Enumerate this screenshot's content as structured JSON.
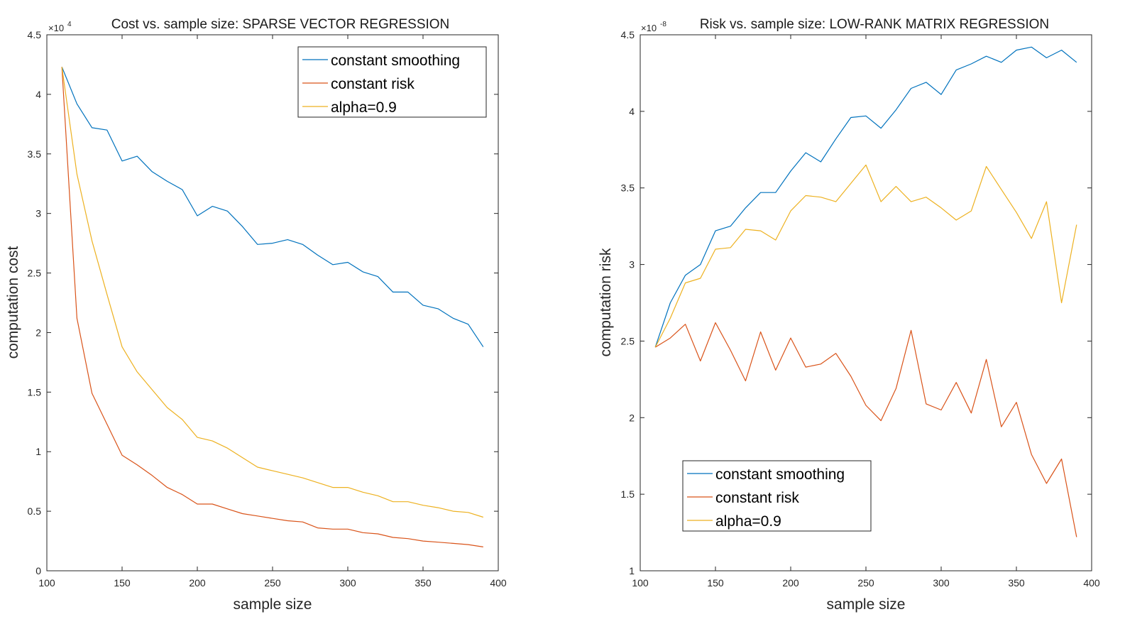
{
  "chart_data": [
    {
      "type": "line",
      "title": "Cost vs. sample size: SPARSE VECTOR REGRESSION",
      "xlabel": "sample size",
      "ylabel": "computation cost",
      "y_exponent_label": "×10",
      "y_exponent_power": "4",
      "xlim": [
        100,
        400
      ],
      "ylim": [
        0,
        4.5
      ],
      "legend_position": "top-right",
      "x_ticks": [
        "100",
        "150",
        "200",
        "250",
        "300",
        "350",
        "400"
      ],
      "y_ticks": [
        "0",
        "0.5",
        "1",
        "1.5",
        "2",
        "2.5",
        "3",
        "3.5",
        "4",
        "4.5"
      ],
      "x": [
        110,
        120,
        130,
        140,
        150,
        160,
        170,
        180,
        190,
        200,
        210,
        220,
        230,
        240,
        250,
        260,
        270,
        280,
        290,
        300,
        310,
        320,
        330,
        340,
        350,
        360,
        370,
        380,
        390
      ],
      "series": [
        {
          "name": "constant smoothing",
          "color": "#0072BD",
          "values": [
            4.23,
            3.92,
            3.72,
            3.7,
            3.44,
            3.48,
            3.35,
            3.27,
            3.2,
            2.98,
            3.06,
            3.02,
            2.89,
            2.74,
            2.75,
            2.78,
            2.74,
            2.65,
            2.57,
            2.59,
            2.51,
            2.47,
            2.34,
            2.34,
            2.23,
            2.2,
            2.12,
            2.07,
            1.88
          ]
        },
        {
          "name": "constant risk",
          "color": "#D95319",
          "values": [
            4.23,
            2.12,
            1.49,
            1.23,
            0.97,
            0.89,
            0.8,
            0.7,
            0.64,
            0.56,
            0.56,
            0.52,
            0.48,
            0.46,
            0.44,
            0.42,
            0.41,
            0.36,
            0.35,
            0.35,
            0.32,
            0.31,
            0.28,
            0.27,
            0.25,
            0.24,
            0.23,
            0.22,
            0.2
          ]
        },
        {
          "name": "alpha=0.9",
          "color": "#EDB120",
          "values": [
            4.23,
            3.33,
            2.77,
            2.32,
            1.88,
            1.67,
            1.52,
            1.37,
            1.27,
            1.12,
            1.09,
            1.03,
            0.95,
            0.87,
            0.84,
            0.81,
            0.78,
            0.74,
            0.7,
            0.7,
            0.66,
            0.63,
            0.58,
            0.58,
            0.55,
            0.53,
            0.5,
            0.49,
            0.45
          ]
        }
      ]
    },
    {
      "type": "line",
      "title": "Risk vs. sample size: LOW-RANK MATRIX REGRESSION",
      "xlabel": "sample size",
      "ylabel": "computation risk",
      "y_exponent_label": "×10",
      "y_exponent_power": "-8",
      "xlim": [
        100,
        400
      ],
      "ylim": [
        1,
        4.5
      ],
      "legend_position": "bottom-left",
      "x_ticks": [
        "100",
        "150",
        "200",
        "250",
        "300",
        "350",
        "400"
      ],
      "y_ticks": [
        "1",
        "1.5",
        "2",
        "2.5",
        "3",
        "3.5",
        "4",
        "4.5"
      ],
      "x": [
        110,
        120,
        130,
        140,
        150,
        160,
        170,
        180,
        190,
        200,
        210,
        220,
        230,
        240,
        250,
        260,
        270,
        280,
        290,
        300,
        310,
        320,
        330,
        340,
        350,
        360,
        370,
        380,
        390
      ],
      "series": [
        {
          "name": "constant smoothing",
          "color": "#0072BD",
          "values": [
            2.46,
            2.75,
            2.93,
            3.0,
            3.22,
            3.25,
            3.37,
            3.47,
            3.47,
            3.61,
            3.73,
            3.67,
            3.82,
            3.96,
            3.97,
            3.89,
            4.01,
            4.15,
            4.19,
            4.11,
            4.27,
            4.31,
            4.36,
            4.32,
            4.4,
            4.42,
            4.35,
            4.4,
            4.32
          ]
        },
        {
          "name": "constant risk",
          "color": "#D95319",
          "values": [
            2.46,
            2.52,
            2.61,
            2.37,
            2.62,
            2.44,
            2.24,
            2.56,
            2.31,
            2.52,
            2.33,
            2.35,
            2.42,
            2.27,
            2.08,
            1.98,
            2.19,
            2.57,
            2.09,
            2.05,
            2.23,
            2.03,
            2.38,
            1.94,
            2.1,
            1.76,
            1.57,
            1.73,
            1.22
          ]
        },
        {
          "name": "alpha=0.9",
          "color": "#EDB120",
          "values": [
            2.46,
            2.65,
            2.88,
            2.91,
            3.1,
            3.11,
            3.23,
            3.22,
            3.16,
            3.35,
            3.45,
            3.44,
            3.41,
            3.53,
            3.65,
            3.41,
            3.51,
            3.41,
            3.44,
            3.37,
            3.29,
            3.35,
            3.64,
            3.49,
            3.34,
            3.17,
            3.41,
            2.75,
            3.26
          ]
        }
      ]
    }
  ]
}
